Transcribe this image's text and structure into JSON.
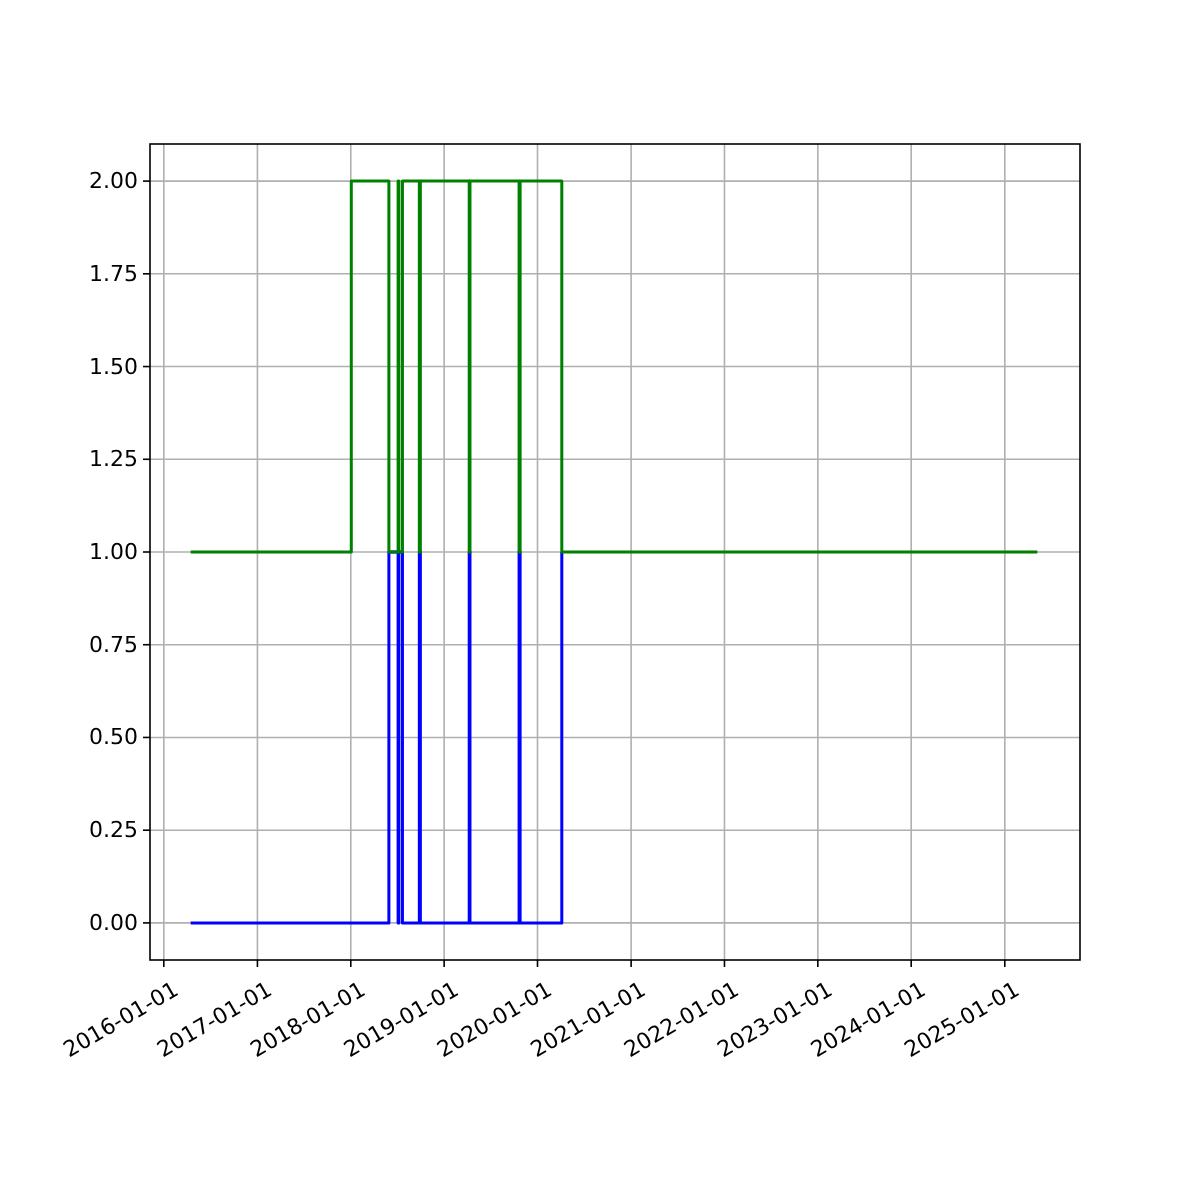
{
  "chart_data": {
    "type": "step",
    "xlim": [
      "2015-11-08",
      "2025-10-22"
    ],
    "ylim": [
      -0.1,
      2.1
    ],
    "xticks": [
      "2016-01-01",
      "2017-01-01",
      "2018-01-01",
      "2019-01-01",
      "2020-01-01",
      "2021-01-01",
      "2022-01-01",
      "2023-01-01",
      "2024-01-01",
      "2025-01-01"
    ],
    "yticks": [
      {
        "value": 0,
        "label": "0.00"
      },
      {
        "value": 0.25,
        "label": "0.25"
      },
      {
        "value": 0.5,
        "label": "0.50"
      },
      {
        "value": 0.75,
        "label": "0.75"
      },
      {
        "value": 1,
        "label": "1.00"
      },
      {
        "value": 1.25,
        "label": "1.25"
      },
      {
        "value": 1.5,
        "label": "1.50"
      },
      {
        "value": 1.75,
        "label": "1.75"
      },
      {
        "value": 2,
        "label": "2.00"
      }
    ],
    "grid": true,
    "series": [
      {
        "color": "#0000ff",
        "x": [
          "2016-04-15",
          "2018-05-30",
          "2018-07-05",
          "2018-07-08",
          "2018-07-22",
          "2018-09-26",
          "2018-09-30",
          "2019-04-09",
          "2019-04-12",
          "2019-10-21",
          "2019-10-25",
          "2020-04-05"
        ],
        "values": [
          0,
          1,
          0,
          1,
          0,
          1,
          0,
          1,
          0,
          1,
          0,
          1
        ]
      },
      {
        "color": "#008000",
        "x": [
          "2016-04-15",
          "2018-01-03",
          "2018-05-30",
          "2018-07-05",
          "2018-07-08",
          "2018-07-22",
          "2018-09-26",
          "2018-09-30",
          "2019-04-09",
          "2019-04-12",
          "2019-10-21",
          "2019-10-25",
          "2020-04-05",
          "2025-05-08"
        ],
        "values": [
          1,
          2,
          1,
          2,
          1,
          2,
          1,
          2,
          1,
          2,
          1,
          2,
          1,
          1
        ]
      }
    ]
  }
}
